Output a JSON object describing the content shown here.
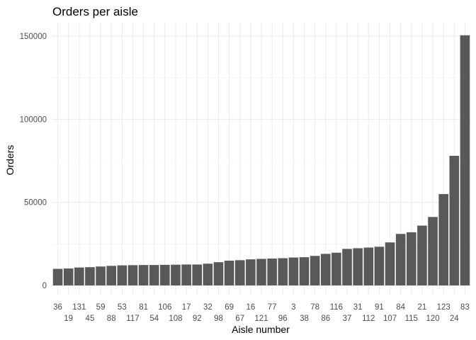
{
  "chart_data": {
    "type": "bar",
    "title": "Orders per aisle",
    "xlabel": "Aisle number",
    "ylabel": "Orders",
    "ylim": [
      0,
      155000
    ],
    "yticks": [
      0,
      50000,
      100000,
      150000
    ],
    "ytick_labels": [
      "0",
      "50000",
      "100000",
      "150000"
    ],
    "categories": [
      "36",
      "19",
      "131",
      "45",
      "59",
      "88",
      "53",
      "117",
      "81",
      "54",
      "106",
      "108",
      "17",
      "92",
      "32",
      "98",
      "69",
      "67",
      "16",
      "121",
      "77",
      "96",
      "3",
      "38",
      "78",
      "86",
      "116",
      "37",
      "31",
      "112",
      "91",
      "107",
      "84",
      "115",
      "21",
      "120",
      "123",
      "24",
      "83"
    ],
    "values": [
      10000,
      10200,
      10800,
      11000,
      11400,
      11800,
      12100,
      12200,
      12300,
      12300,
      12400,
      12500,
      12600,
      12600,
      13100,
      14000,
      14900,
      15200,
      15700,
      16000,
      16200,
      16400,
      16800,
      17000,
      17800,
      19000,
      19700,
      22000,
      22400,
      22800,
      23300,
      25900,
      31000,
      32000,
      36000,
      41200,
      55000,
      78000,
      150500
    ],
    "bar_color": "#595959",
    "grid": true
  }
}
